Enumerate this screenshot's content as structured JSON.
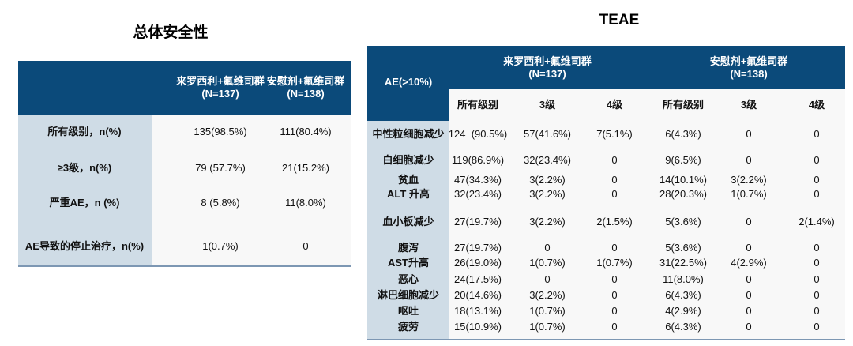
{
  "left": {
    "title": "总体安全性",
    "columns": [
      "来罗西利+氟维司群\n(N=137)",
      "安慰剂+氟维司群\n(N=138)"
    ],
    "rows": [
      {
        "label": "所有级别，n(%)",
        "values": [
          "135(98.5%)",
          "111(80.4%)"
        ]
      },
      {
        "label": "≥3级，n(%)",
        "values": [
          "79 (57.7%)",
          "21(15.2%)"
        ]
      },
      {
        "label": "严重AE，n (%)",
        "values": [
          "8 (5.8%)",
          "11(8.0%)"
        ]
      },
      {
        "label": "AE导致的停止治疗，n(%)",
        "values": [
          "1(0.7%)",
          "0"
        ]
      }
    ]
  },
  "right": {
    "title": "TEAE",
    "corner": "AE(>10%)",
    "groups": [
      "来罗西利+氟维司群\n(N=137)",
      "安慰剂+氟维司群\n(N=138)"
    ],
    "subheaders": [
      "所有级别",
      "3级",
      "4级",
      "所有级别",
      "3级",
      "4级"
    ],
    "rows": [
      {
        "label": "中性粒细胞减少",
        "values": [
          "124  (90.5%)",
          "57(41.6%)",
          "7(5.1%)",
          "6(4.3%)",
          "0",
          "0"
        ]
      },
      {
        "label": "白细胞减少",
        "values": [
          "119(86.9%)",
          "32(23.4%)",
          "0",
          "9(6.5%)",
          "0",
          "0"
        ]
      },
      {
        "label": "贫血",
        "values": [
          "47(34.3%)",
          "3(2.2%)",
          "0",
          "14(10.1%)",
          "3(2.2%)",
          "0"
        ]
      },
      {
        "label": "ALT 升高",
        "values": [
          "32(23.4%)",
          "3(2.2%)",
          "0",
          "28(20.3%)",
          "1(0.7%)",
          "0"
        ]
      },
      {
        "label": "血小板减少",
        "values": [
          "27(19.7%)",
          "3(2.2%)",
          "2(1.5%)",
          "5(3.6%)",
          "0",
          "2(1.4%)"
        ]
      },
      {
        "label": "腹泻",
        "values": [
          "27(19.7%)",
          "0",
          "0",
          "5(3.6%)",
          "0",
          "0"
        ]
      },
      {
        "label": "AST升高",
        "values": [
          "26(19.0%)",
          "1(0.7%)",
          "1(0.7%)",
          "31(22.5%)",
          "4(2.9%)",
          "0"
        ]
      },
      {
        "label": "恶心",
        "values": [
          "24(17.5%)",
          "0",
          "0",
          "11(8.0%)",
          "0",
          "0"
        ]
      },
      {
        "label": "淋巴细胞减少",
        "values": [
          "20(14.6%)",
          "3(2.2%)",
          "0",
          "6(4.3%)",
          "0",
          "0"
        ]
      },
      {
        "label": "呕吐",
        "values": [
          "18(13.1%)",
          "1(0.7%)",
          "0",
          "4(2.9%)",
          "0",
          "0"
        ]
      },
      {
        "label": "疲劳",
        "values": [
          "15(10.9%)",
          "1(0.7%)",
          "0",
          "6(4.3%)",
          "0",
          "0"
        ]
      }
    ]
  },
  "colors": {
    "header": "#0b4a7a",
    "label_column": "#cfdce6",
    "rule": "#7d97b3"
  }
}
